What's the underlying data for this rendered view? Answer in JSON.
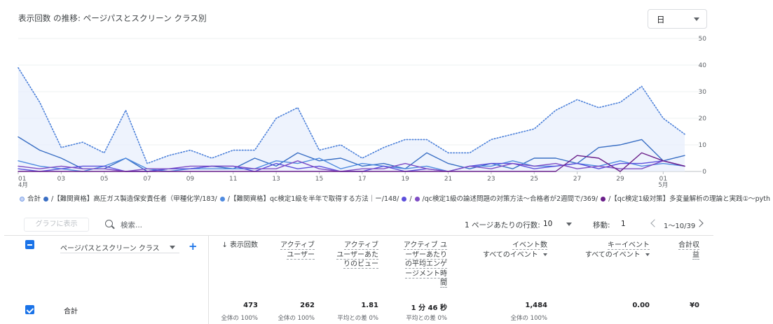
{
  "chart_title": "表示回数 の推移: ページパスとスクリーン クラス別",
  "granularity_select": "日",
  "chart_data": {
    "type": "line",
    "title": "表示回数 の推移: ページパスとスクリーン クラス別",
    "xlabel": "",
    "ylabel": "",
    "ylim": [
      0,
      50
    ],
    "y_ticks": [
      "0",
      "10",
      "20",
      "30",
      "40",
      "50"
    ],
    "y_axis_side": "right",
    "x_tick_labels": [
      {
        "index": 0,
        "label": "01",
        "sub": "4月"
      },
      {
        "index": 2,
        "label": "03",
        "sub": ""
      },
      {
        "index": 4,
        "label": "05",
        "sub": ""
      },
      {
        "index": 6,
        "label": "07",
        "sub": ""
      },
      {
        "index": 8,
        "label": "09",
        "sub": ""
      },
      {
        "index": 10,
        "label": "11",
        "sub": ""
      },
      {
        "index": 12,
        "label": "13",
        "sub": ""
      },
      {
        "index": 14,
        "label": "15",
        "sub": ""
      },
      {
        "index": 16,
        "label": "17",
        "sub": ""
      },
      {
        "index": 18,
        "label": "19",
        "sub": ""
      },
      {
        "index": 20,
        "label": "21",
        "sub": ""
      },
      {
        "index": 22,
        "label": "23",
        "sub": ""
      },
      {
        "index": 24,
        "label": "25",
        "sub": ""
      },
      {
        "index": 26,
        "label": "27",
        "sub": ""
      },
      {
        "index": 28,
        "label": "29",
        "sub": ""
      },
      {
        "index": 30,
        "label": "01",
        "sub": "5月"
      }
    ],
    "grid": true,
    "series": [
      {
        "color": "#4a7fd9",
        "dotted": true,
        "area": true,
        "values": [
          39,
          26,
          9,
          11,
          7,
          23,
          3,
          6,
          8,
          5,
          8,
          8,
          20,
          24,
          8,
          10,
          5,
          9,
          12,
          12,
          7,
          7,
          12,
          14,
          16,
          23,
          27,
          24,
          26,
          32,
          20,
          14
        ]
      },
      {
        "color": "#3a6fc4",
        "dotted": false,
        "area": false,
        "values": [
          13,
          8,
          5,
          1,
          1,
          5,
          0,
          1,
          1,
          2,
          1,
          5,
          2,
          7,
          4,
          5,
          2,
          3,
          1,
          7,
          3,
          1,
          3,
          1,
          5,
          5,
          3,
          9,
          10,
          12,
          4,
          6
        ]
      },
      {
        "color": "#4f8be0",
        "dotted": false,
        "area": false,
        "values": [
          4,
          2,
          1,
          0,
          2,
          5,
          1,
          0,
          1,
          1,
          1,
          1,
          4,
          3,
          5,
          1,
          3,
          2,
          1,
          2,
          0,
          2,
          2,
          4,
          2,
          2,
          3,
          2,
          4,
          2,
          3,
          2
        ]
      },
      {
        "color": "#5c4fdc",
        "dotted": false,
        "area": false,
        "values": [
          1,
          0,
          1,
          2,
          2,
          0,
          0,
          1,
          1,
          2,
          2,
          0,
          3,
          1,
          2,
          0,
          0,
          2,
          0,
          1,
          0,
          2,
          3,
          3,
          1,
          2,
          3,
          1,
          3,
          3,
          4,
          2
        ]
      },
      {
        "color": "#7e4cc4",
        "dotted": false,
        "area": false,
        "values": [
          2,
          1,
          2,
          1,
          1,
          0,
          1,
          1,
          2,
          2,
          2,
          1,
          1,
          4,
          1,
          0,
          1,
          1,
          3,
          1,
          0,
          2,
          1,
          3,
          2,
          3,
          1,
          2,
          1,
          1,
          4,
          2
        ]
      },
      {
        "color": "#6a1f8a",
        "dotted": false,
        "area": false,
        "values": [
          0,
          0,
          0,
          0,
          0,
          0,
          0,
          0,
          0,
          0,
          0,
          0,
          0,
          0,
          0,
          0,
          0,
          0,
          0,
          0,
          0,
          0,
          0,
          0,
          0,
          0,
          6,
          5,
          0,
          7,
          4,
          2
        ]
      }
    ]
  },
  "legend": [
    {
      "label": "合計",
      "color": "#c6d4f5"
    },
    {
      "label": "/【難関資格】高圧ガス製造保安責任者（甲種化学/183/",
      "color": "#3a6fc4"
    },
    {
      "label": "/【難関資格】qc検定1級を半年で取得する方法｜ー/148/",
      "color": "#4f8be0"
    },
    {
      "label": "/",
      "color": "#5c4fdc"
    },
    {
      "label": "/qc検定1級の論述問題の対策方法〜合格者が2週間で/369/",
      "color": "#7e4cc4"
    },
    {
      "label": "/【qc検定1級対策】多変量解析の理論と実践①〜pyth",
      "color": "#6a1f8a"
    }
  ],
  "toolbar": {
    "graph_button": "グラフに表示",
    "search_placeholder": "検索...",
    "rows_per_page_label": "1 ページあたりの行数:",
    "rows_per_page_value": "10",
    "move_label": "移動:",
    "move_value": "1",
    "pager_text": "1〜10/39"
  },
  "table": {
    "dimension_select": "ページパスとスクリーン クラス",
    "columns": [
      {
        "lines": [
          "↓ 表示回数"
        ],
        "sub": ""
      },
      {
        "lines": [
          "アクティブ",
          "ユーザー"
        ],
        "sub": ""
      },
      {
        "lines": [
          "アクティブ",
          "ユーザーあた",
          "りのビュー"
        ],
        "sub": ""
      },
      {
        "lines": [
          "アクティブ ユ",
          "ーザーあたり",
          "の平均エンゲ",
          "ージメント時",
          "間"
        ],
        "sub": ""
      },
      {
        "lines": [
          "イベント数"
        ],
        "sub": "すべてのイベント"
      },
      {
        "lines": [
          "キーイベント"
        ],
        "sub": "すべてのイベント"
      },
      {
        "lines": [
          "合計収",
          "益"
        ],
        "sub": ""
      }
    ],
    "total_row": {
      "label": "合計",
      "values": [
        "473",
        "262",
        "1.81",
        "1 分 46 秒",
        "1,484",
        "0.00",
        "¥0"
      ],
      "subs": [
        "全体の 100%",
        "全体の 100%",
        "平均との差 0%",
        "平均との差 0%",
        "全体の 100%",
        "",
        ""
      ]
    }
  }
}
